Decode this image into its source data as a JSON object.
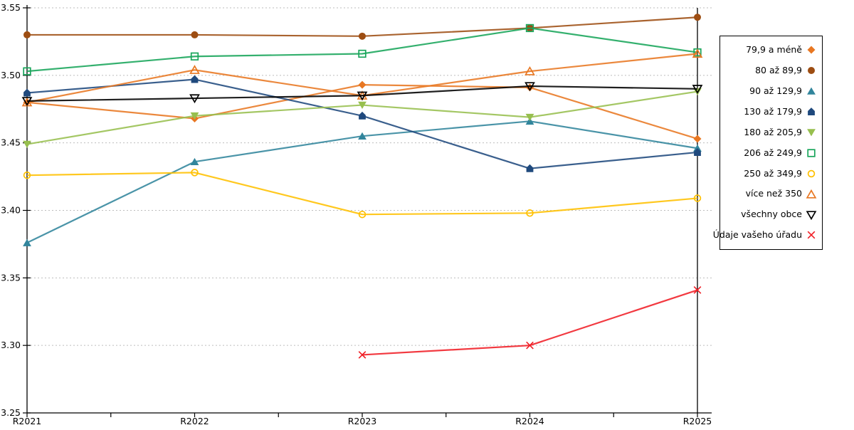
{
  "chart_data": {
    "type": "line",
    "title": "",
    "xlabel": "",
    "ylabel": "",
    "x_categories": [
      "R2021",
      "R2022",
      "R2023",
      "R2024",
      "R2025"
    ],
    "y_tick_labels": [
      "3.25",
      "3.30",
      "3.35",
      "3.40",
      "3.45",
      "3.50",
      "3.55"
    ],
    "ylim": [
      3.25,
      3.55
    ],
    "y_step": 0.05,
    "grid": "horizontal-dotted",
    "legend_position": "right",
    "series": [
      {
        "name": "79,9 a méně",
        "marker": "diamond",
        "fill": "filled",
        "color": "#E87722",
        "values": [
          3.48,
          3.468,
          3.493,
          3.491,
          3.453
        ]
      },
      {
        "name": "80 až 89,9",
        "marker": "circle",
        "fill": "filled",
        "color": "#9D4D12",
        "values": [
          3.53,
          3.53,
          3.529,
          3.535,
          3.543
        ]
      },
      {
        "name": "90 až 129,9",
        "marker": "triangle-up",
        "fill": "filled",
        "color": "#31859C",
        "values": [
          3.376,
          3.436,
          3.455,
          3.466,
          3.446
        ]
      },
      {
        "name": "130 až 179,9",
        "marker": "pentagon",
        "fill": "filled",
        "color": "#1F497D",
        "values": [
          3.487,
          3.497,
          3.47,
          3.431,
          3.443
        ]
      },
      {
        "name": "180 až 205,9",
        "marker": "triangle-down",
        "fill": "filled",
        "color": "#97BF4E",
        "values": [
          3.449,
          3.47,
          3.478,
          3.469,
          3.488
        ]
      },
      {
        "name": "206 až 249,9",
        "marker": "square",
        "fill": "hollow",
        "color": "#18A55A",
        "values": [
          3.503,
          3.514,
          3.516,
          3.535,
          3.517
        ]
      },
      {
        "name": "250 až 349,9",
        "marker": "circle",
        "fill": "hollow",
        "color": "#FFC000",
        "values": [
          3.426,
          3.428,
          3.397,
          3.398,
          3.409
        ]
      },
      {
        "name": "více než 350",
        "marker": "triangle-up",
        "fill": "hollow",
        "color": "#E87722",
        "values": [
          3.48,
          3.504,
          3.485,
          3.503,
          3.516
        ]
      },
      {
        "name": "všechny obce",
        "marker": "triangle-down",
        "fill": "hollow",
        "color": "#000000",
        "values": [
          3.481,
          3.483,
          3.485,
          3.492,
          3.49
        ]
      },
      {
        "name": "Údaje vašeho úřadu",
        "marker": "x",
        "fill": "hollow",
        "color": "#F01E25",
        "values": [
          null,
          null,
          3.293,
          3.3,
          3.341
        ]
      }
    ]
  },
  "colors": {
    "background": "#FFFFFF",
    "gridline": "#BDBDBD",
    "axis": "#000000",
    "text": "#000000"
  }
}
